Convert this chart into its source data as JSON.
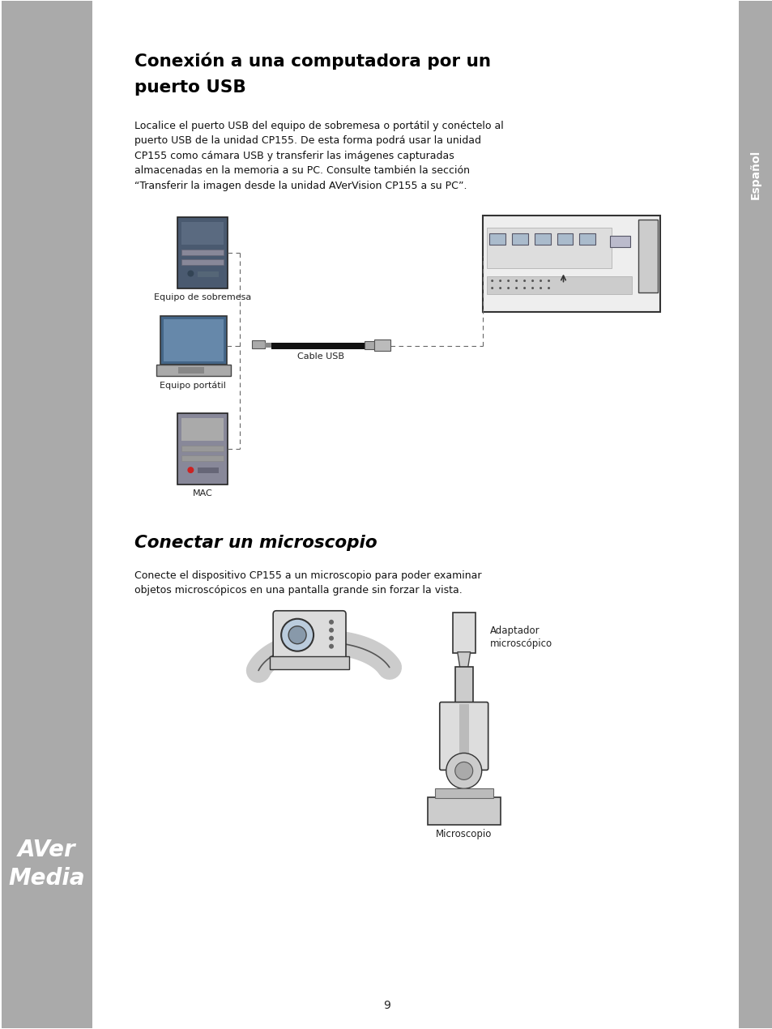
{
  "page_bg": "#ffffff",
  "left_bar_color": "#aaaaaa",
  "right_bar_color": "#aaaaaa",
  "title1_line1": "Conexión a una computadora por un",
  "title1_line2": "puerto USB",
  "title2": "Conectar un microscopio",
  "body_text1_lines": [
    "Localice el puerto USB del equipo de sobremesa o portátil y conéctelo al",
    "puerto USB de la unidad CP155. De esta forma podrá usar la unidad",
    "CP155 como cámara USB y transferir las imágenes capturadas",
    "almacenadas en la memoria a su PC. Consulte también la sección",
    "“Transferir la imagen desde la unidad AVerVision CP155 a su PC”."
  ],
  "body_text2_lines": [
    "Conecte el dispositivo CP155 a un microscopio para poder examinar",
    "objetos microscópicos en una pantalla grande sin forzar la vista."
  ],
  "label_desktop": "Equipo de sobremesa",
  "label_laptop": "Equipo portátil",
  "label_mac": "MAC",
  "label_cable": "Cable USB",
  "label_adapter": "Adaptador\nmicroscópico",
  "label_microscope": "Microscopio",
  "label_espanol": "Español",
  "page_number": "9"
}
